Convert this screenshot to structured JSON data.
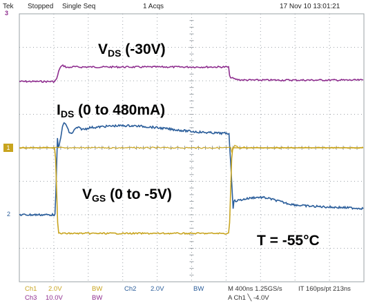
{
  "topbar": {
    "brand": "Tek",
    "status": "Stopped",
    "mode": "Single Seq",
    "acqs": "1 Acqs",
    "datetime": "17 Nov 10 13:01:21"
  },
  "labels": {
    "vds_main": "V",
    "vds_sub": "DS",
    "vds_rest": " (-30V)",
    "ids_main": "I",
    "ids_sub": "DS",
    "ids_rest": " (0 to 480mA)",
    "vgs_main": "V",
    "vgs_sub": "GS",
    "vgs_rest": " (0 to -5V)",
    "temp": "T = -55°C"
  },
  "markers": {
    "ch1": "1",
    "ch2": "2",
    "trigger": "3"
  },
  "bottombar": {
    "ch1_label": "Ch1",
    "ch1_scale": "2.0V",
    "ch1_bw": "BW",
    "ch2_label": "Ch2",
    "ch2_scale": "2.0V",
    "ch2_bw": "BW",
    "ch3_label": "Ch3",
    "ch3_scale": "10.0V",
    "ch3_bw": "BW",
    "timebase": "M 400ns 1.25GS/s",
    "record": "IT 160ps/pt 213ns",
    "trigger": "A  Ch1  ╲  -4.0V"
  },
  "colors": {
    "ch1": "#c8a41e",
    "ch2": "#2a5d9a",
    "ch3": "#8e2d8e",
    "grid": "#9aa0a6"
  }
}
